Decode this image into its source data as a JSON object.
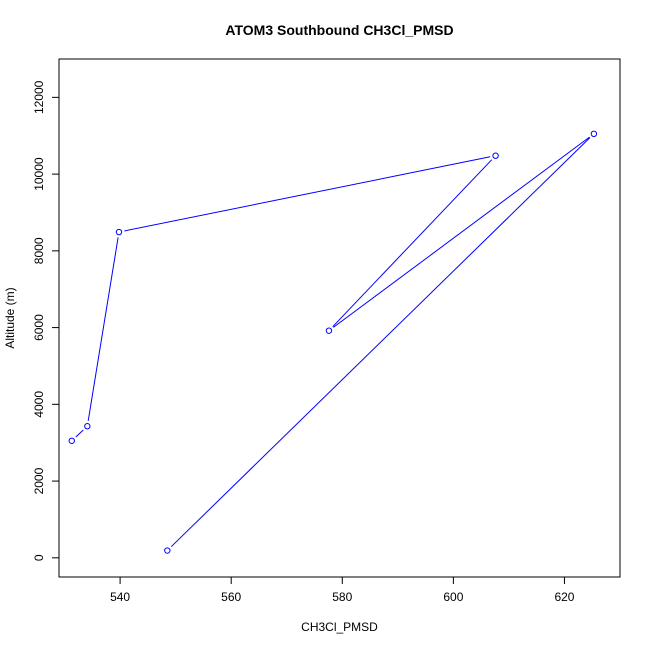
{
  "chart_data": {
    "type": "line",
    "title": "ATOM3 Southbound CH3Cl_PMSD",
    "xlabel": "CH3Cl_PMSD",
    "ylabel": "Altitude (m)",
    "xlim": [
      529,
      630
    ],
    "ylim": [
      -500,
      13000
    ],
    "x_ticks": [
      540,
      560,
      580,
      600,
      620
    ],
    "y_ticks": [
      0,
      2000,
      4000,
      6000,
      8000,
      10000,
      12000
    ],
    "grid": false,
    "legend": "none",
    "series": [
      {
        "color": "#0000ff",
        "points": [
          {
            "x": 548.5,
            "y": 190
          },
          {
            "x": 625.3,
            "y": 11050
          },
          {
            "x": 577.6,
            "y": 5920
          },
          {
            "x": 607.6,
            "y": 10480
          },
          {
            "x": 539.8,
            "y": 8490
          },
          {
            "x": 534.1,
            "y": 3430
          },
          {
            "x": 531.3,
            "y": 3050
          }
        ]
      }
    ]
  }
}
